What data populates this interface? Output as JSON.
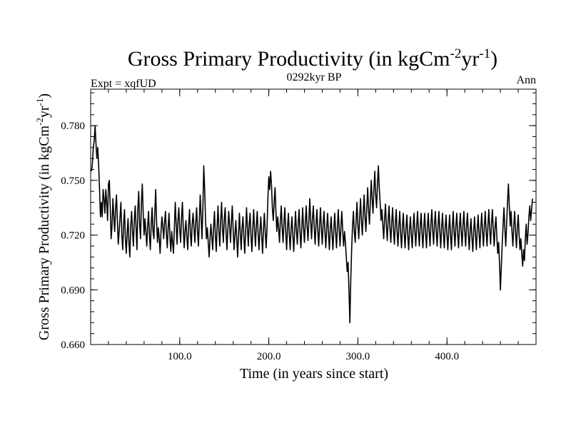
{
  "chart_data": {
    "type": "line",
    "title": "Gross Primary Productivity (in kgCm",
    "title_sup1": "-2",
    "title_mid": "yr",
    "title_sup2": "-1",
    "title_end": ")",
    "subtitle_left": "Expt = xqfUD",
    "subtitle_center": "0292kyr BP",
    "subtitle_right": "Ann",
    "xlabel": "Time (in years since start)",
    "ylabel": "Gross Primary Productivity (in kgCm",
    "ylabel_sup1": "-2",
    "ylabel_mid": "yr",
    "ylabel_sup2": "-1",
    "ylabel_end": ")",
    "xlim": [
      0,
      500
    ],
    "ylim": [
      0.66,
      0.8
    ],
    "x_ticks": [
      {
        "value": 100,
        "label": "100.0"
      },
      {
        "value": 200,
        "label": "200.0"
      },
      {
        "value": 300,
        "label": "300.0"
      },
      {
        "value": 400,
        "label": "400.0"
      }
    ],
    "y_ticks": [
      {
        "value": 0.66,
        "label": "0.660"
      },
      {
        "value": 0.69,
        "label": "0.690"
      },
      {
        "value": 0.72,
        "label": "0.720"
      },
      {
        "value": 0.75,
        "label": "0.750"
      },
      {
        "value": 0.78,
        "label": "0.780"
      }
    ],
    "x_minor_step": 20,
    "y_minor_step": 0.006,
    "series": [
      {
        "name": "Ann",
        "x_start": 1,
        "x_step": 1,
        "values": [
          0.755,
          0.76,
          0.768,
          0.772,
          0.78,
          0.77,
          0.762,
          0.768,
          0.758,
          0.745,
          0.73,
          0.738,
          0.73,
          0.745,
          0.74,
          0.732,
          0.745,
          0.738,
          0.728,
          0.748,
          0.75,
          0.735,
          0.718,
          0.725,
          0.74,
          0.73,
          0.722,
          0.735,
          0.742,
          0.728,
          0.715,
          0.722,
          0.73,
          0.738,
          0.72,
          0.712,
          0.726,
          0.734,
          0.718,
          0.71,
          0.721,
          0.729,
          0.716,
          0.708,
          0.725,
          0.733,
          0.722,
          0.714,
          0.728,
          0.736,
          0.724,
          0.712,
          0.735,
          0.744,
          0.726,
          0.718,
          0.738,
          0.748,
          0.732,
          0.72,
          0.729,
          0.722,
          0.714,
          0.725,
          0.733,
          0.72,
          0.712,
          0.726,
          0.735,
          0.722,
          0.718,
          0.732,
          0.745,
          0.728,
          0.716,
          0.724,
          0.718,
          0.71,
          0.722,
          0.73,
          0.725,
          0.718,
          0.727,
          0.733,
          0.721,
          0.713,
          0.724,
          0.732,
          0.719,
          0.711,
          0.722,
          0.716,
          0.71,
          0.724,
          0.738,
          0.726,
          0.715,
          0.728,
          0.735,
          0.723,
          0.716,
          0.729,
          0.738,
          0.724,
          0.713,
          0.722,
          0.728,
          0.719,
          0.712,
          0.725,
          0.734,
          0.721,
          0.714,
          0.726,
          0.732,
          0.724,
          0.716,
          0.727,
          0.735,
          0.722,
          0.714,
          0.728,
          0.742,
          0.73,
          0.718,
          0.735,
          0.758,
          0.745,
          0.728,
          0.718,
          0.724,
          0.716,
          0.708,
          0.718,
          0.726,
          0.719,
          0.712,
          0.724,
          0.733,
          0.72,
          0.711,
          0.725,
          0.736,
          0.722,
          0.714,
          0.728,
          0.738,
          0.724,
          0.716,
          0.729,
          0.735,
          0.722,
          0.712,
          0.723,
          0.733,
          0.725,
          0.716,
          0.727,
          0.736,
          0.723,
          0.712,
          0.72,
          0.728,
          0.718,
          0.708,
          0.72,
          0.732,
          0.721,
          0.712,
          0.724,
          0.73,
          0.719,
          0.71,
          0.722,
          0.735,
          0.724,
          0.714,
          0.726,
          0.732,
          0.72,
          0.711,
          0.723,
          0.734,
          0.723,
          0.714,
          0.725,
          0.733,
          0.721,
          0.712,
          0.722,
          0.73,
          0.72,
          0.71,
          0.723,
          0.732,
          0.722,
          0.713,
          0.724,
          0.74,
          0.752,
          0.745,
          0.755,
          0.748,
          0.735,
          0.728,
          0.738,
          0.746,
          0.733,
          0.722,
          0.73,
          0.724,
          0.716,
          0.728,
          0.736,
          0.724,
          0.716,
          0.727,
          0.735,
          0.722,
          0.712,
          0.724,
          0.732,
          0.721,
          0.712,
          0.723,
          0.73,
          0.72,
          0.711,
          0.722,
          0.733,
          0.723,
          0.715,
          0.726,
          0.734,
          0.722,
          0.713,
          0.724,
          0.735,
          0.724,
          0.716,
          0.727,
          0.736,
          0.725,
          0.717,
          0.728,
          0.74,
          0.728,
          0.718,
          0.729,
          0.736,
          0.724,
          0.715,
          0.726,
          0.734,
          0.723,
          0.714,
          0.725,
          0.735,
          0.724,
          0.715,
          0.726,
          0.733,
          0.722,
          0.713,
          0.724,
          0.732,
          0.721,
          0.712,
          0.723,
          0.73,
          0.72,
          0.712,
          0.723,
          0.732,
          0.722,
          0.713,
          0.724,
          0.734,
          0.723,
          0.714,
          0.725,
          0.733,
          0.722,
          0.714,
          0.722,
          0.716,
          0.708,
          0.7,
          0.705,
          0.69,
          0.672,
          0.695,
          0.712,
          0.725,
          0.733,
          0.722,
          0.716,
          0.728,
          0.738,
          0.726,
          0.718,
          0.73,
          0.74,
          0.728,
          0.72,
          0.732,
          0.742,
          0.73,
          0.722,
          0.735,
          0.746,
          0.734,
          0.726,
          0.738,
          0.75,
          0.74,
          0.732,
          0.745,
          0.755,
          0.742,
          0.735,
          0.748,
          0.758,
          0.746,
          0.738,
          0.728,
          0.734,
          0.726,
          0.718,
          0.729,
          0.737,
          0.725,
          0.717,
          0.728,
          0.736,
          0.724,
          0.716,
          0.727,
          0.735,
          0.723,
          0.715,
          0.726,
          0.734,
          0.722,
          0.714,
          0.725,
          0.733,
          0.721,
          0.713,
          0.724,
          0.732,
          0.721,
          0.713,
          0.724,
          0.731,
          0.72,
          0.712,
          0.723,
          0.73,
          0.72,
          0.713,
          0.724,
          0.732,
          0.722,
          0.714,
          0.725,
          0.733,
          0.722,
          0.714,
          0.725,
          0.732,
          0.721,
          0.713,
          0.724,
          0.732,
          0.721,
          0.713,
          0.724,
          0.732,
          0.722,
          0.714,
          0.726,
          0.734,
          0.723,
          0.715,
          0.726,
          0.733,
          0.722,
          0.714,
          0.725,
          0.733,
          0.722,
          0.713,
          0.724,
          0.732,
          0.721,
          0.713,
          0.724,
          0.731,
          0.72,
          0.712,
          0.723,
          0.731,
          0.72,
          0.712,
          0.724,
          0.733,
          0.722,
          0.714,
          0.725,
          0.732,
          0.721,
          0.713,
          0.724,
          0.732,
          0.722,
          0.714,
          0.725,
          0.733,
          0.722,
          0.714,
          0.725,
          0.732,
          0.721,
          0.712,
          0.722,
          0.729,
          0.719,
          0.711,
          0.722,
          0.73,
          0.72,
          0.712,
          0.723,
          0.731,
          0.721,
          0.713,
          0.724,
          0.732,
          0.722,
          0.714,
          0.725,
          0.733,
          0.722,
          0.714,
          0.725,
          0.734,
          0.723,
          0.715,
          0.726,
          0.734,
          0.723,
          0.714,
          0.724,
          0.73,
          0.719,
          0.71,
          0.716,
          0.705,
          0.69,
          0.702,
          0.715,
          0.725,
          0.735,
          0.724,
          0.714,
          0.726,
          0.738,
          0.748,
          0.736,
          0.725,
          0.733,
          0.722,
          0.714,
          0.725,
          0.733,
          0.722,
          0.713,
          0.724,
          0.731,
          0.72,
          0.712,
          0.718,
          0.71,
          0.703,
          0.712,
          0.706,
          0.718,
          0.726,
          0.715,
          0.721,
          0.73,
          0.736,
          0.728,
          0.734,
          0.74
        ]
      }
    ],
    "line_color": "#000000"
  }
}
